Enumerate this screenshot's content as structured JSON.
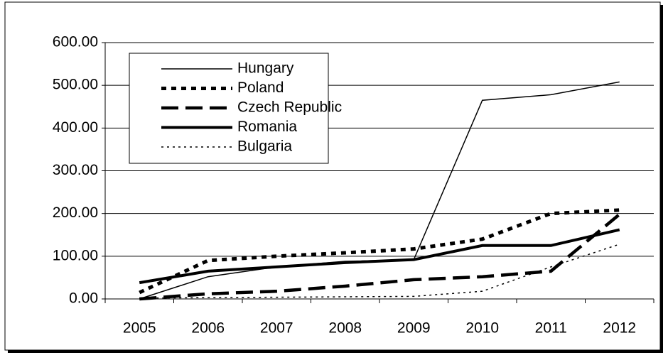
{
  "chart_data": {
    "type": "line",
    "categories": [
      "2005",
      "2006",
      "2007",
      "2008",
      "2009",
      "2010",
      "2011",
      "2012"
    ],
    "series": [
      {
        "name": "Hungary",
        "color": "#000000",
        "values": [
          0,
          52,
          75,
          88,
          92,
          465,
          478,
          508
        ]
      },
      {
        "name": "Poland",
        "color": "#000000",
        "values": [
          15,
          90,
          100,
          108,
          117,
          140,
          200,
          208
        ]
      },
      {
        "name": "Czech Republic",
        "color": "#000000",
        "values": [
          0,
          12,
          18,
          30,
          45,
          52,
          65,
          198
        ]
      },
      {
        "name": "Romania",
        "color": "#000000",
        "values": [
          38,
          65,
          75,
          85,
          92,
          125,
          125,
          162
        ]
      },
      {
        "name": "Bulgaria",
        "color": "#000000",
        "values": [
          2,
          3,
          4,
          5,
          6,
          18,
          75,
          128
        ]
      }
    ],
    "ylim": [
      0,
      600
    ],
    "yticks": [
      {
        "value": 0,
        "label": "0.00"
      },
      {
        "value": 100,
        "label": "100.00"
      },
      {
        "value": 200,
        "label": "200.00"
      },
      {
        "value": 300,
        "label": "300.00"
      },
      {
        "value": 400,
        "label": "400.00"
      },
      {
        "value": 500,
        "label": "500.00"
      },
      {
        "value": 600,
        "label": "600.00"
      }
    ],
    "grid": true,
    "legend": "upper-left"
  }
}
